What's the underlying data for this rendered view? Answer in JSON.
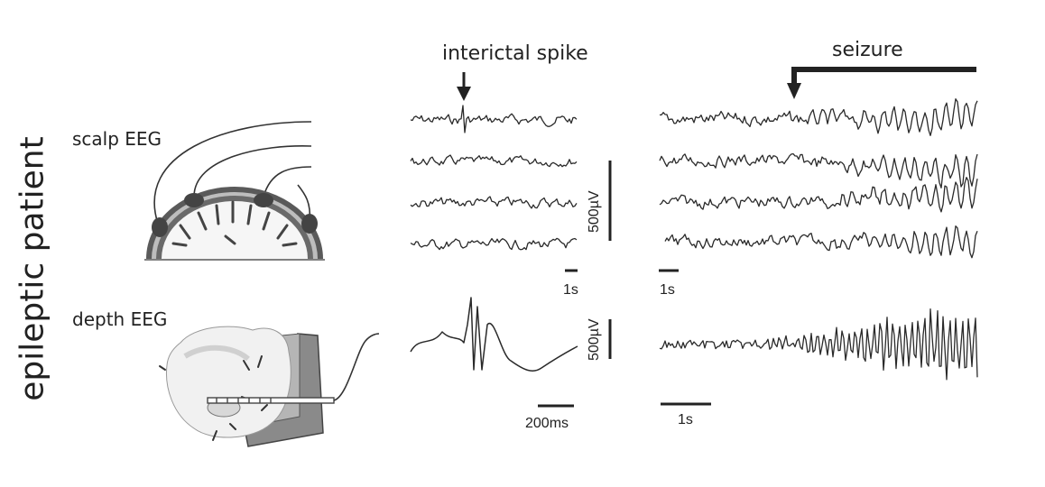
{
  "figure": {
    "side_title": "epileptic patient",
    "rows": {
      "scalp": {
        "label": "scalp EEG"
      },
      "depth": {
        "label": "depth EEG"
      }
    },
    "headers": {
      "interictal": "interictal spike",
      "seizure": "seizure"
    },
    "scale_bars": {
      "scalp_amplitude": "500µV",
      "scalp_interictal_time": "1s",
      "scalp_seizure_time": "1s",
      "depth_amplitude": "500µV",
      "depth_interictal_time": "200ms",
      "depth_seizure_time": "1s"
    },
    "colors": {
      "trace": "#2a2a2a",
      "skull_dark": "#555555",
      "skull_light": "#cccccc",
      "brain_fill": "#f4f4f4",
      "probe_panel": "#888888"
    }
  }
}
